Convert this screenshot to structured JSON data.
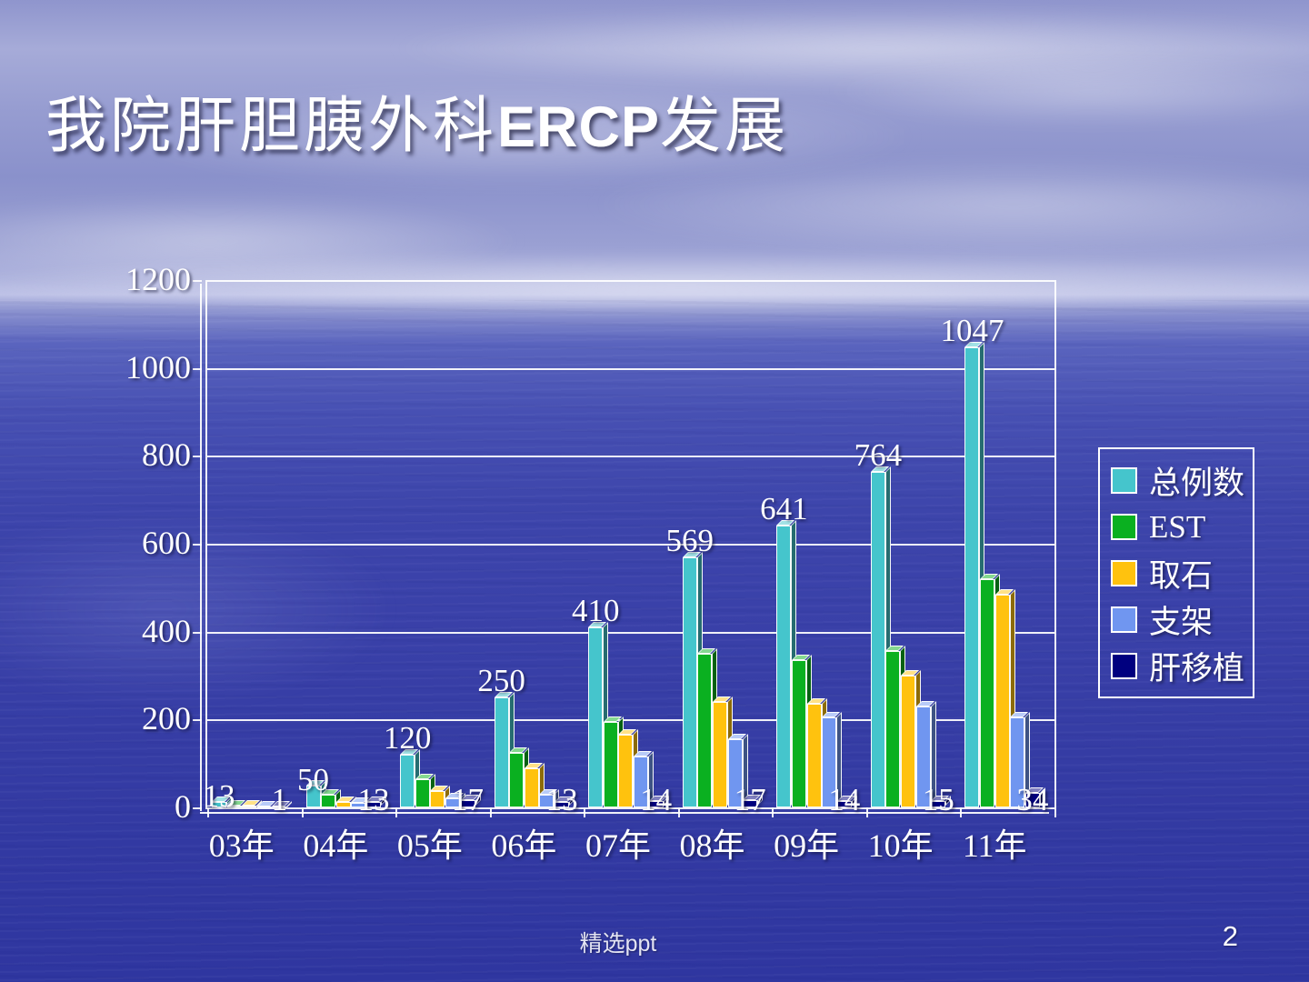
{
  "slide": {
    "title": {
      "prefix": "我院肝胆胰外科",
      "highlight": "ERCP",
      "suffix": "发展"
    },
    "footer": "精选ppt",
    "page_number": "2"
  },
  "chart_data": {
    "type": "bar",
    "title": "",
    "xlabel": "",
    "ylabel": "",
    "categories": [
      "03年",
      "04年",
      "05年",
      "06年",
      "07年",
      "08年",
      "09年",
      "10年",
      "11年"
    ],
    "series": [
      {
        "name": "总例数",
        "color": "#45c5cc",
        "labeled": true,
        "values": [
          13,
          50,
          120,
          250,
          410,
          569,
          641,
          764,
          1047
        ]
      },
      {
        "name": "EST",
        "color": "#0ab020",
        "labeled": false,
        "values": [
          5,
          28,
          65,
          125,
          195,
          350,
          335,
          355,
          520
        ]
      },
      {
        "name": "取石",
        "color": "#ffc20e",
        "labeled": false,
        "values": [
          4,
          13,
          38,
          90,
          165,
          240,
          235,
          300,
          485
        ]
      },
      {
        "name": "支架",
        "color": "#7096f0",
        "labeled": false,
        "values": [
          2,
          10,
          20,
          30,
          115,
          155,
          205,
          230,
          205
        ]
      },
      {
        "name": "肝移植",
        "color": "#00007f",
        "labeled": true,
        "values": [
          1,
          13,
          17,
          13,
          14,
          17,
          14,
          15,
          34
        ]
      }
    ],
    "ylim": [
      0,
      1200
    ],
    "ytick_step": 200,
    "yticks": [
      "0",
      "200",
      "400",
      "600",
      "800",
      "1000",
      "1200"
    ],
    "grid": true,
    "legend_position": "right",
    "style_3d": true
  }
}
